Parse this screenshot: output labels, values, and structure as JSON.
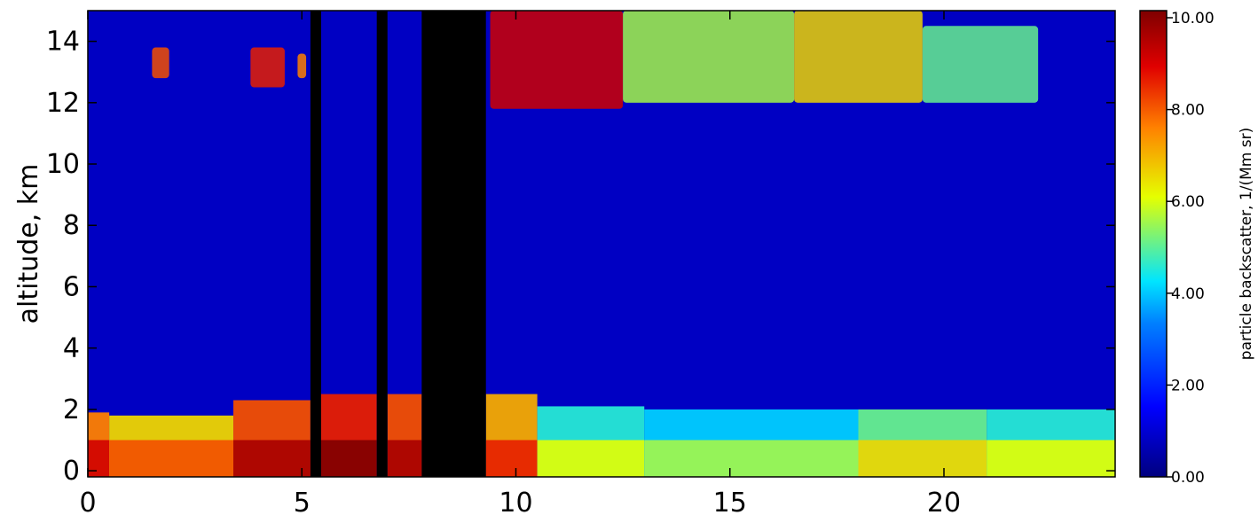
{
  "chart_data": {
    "type": "heatmap",
    "title": "",
    "xlabel": "",
    "ylabel": "altitude, km",
    "xlim": [
      0,
      24
    ],
    "ylim": [
      -0.2,
      15
    ],
    "x_ticks": [
      0,
      5,
      10,
      15,
      20
    ],
    "x_tick_labels": [
      "0",
      "5",
      "10",
      "15",
      "20"
    ],
    "y_ticks": [
      0,
      2,
      4,
      6,
      8,
      10,
      12,
      14
    ],
    "y_tick_labels": [
      "0",
      "2",
      "4",
      "6",
      "8",
      "10",
      "12",
      "14"
    ],
    "colorbar": {
      "label": "particle backscatter, 1/(Mm sr)",
      "range": [
        0,
        10
      ],
      "ticks": [
        0,
        2,
        4,
        6,
        8,
        10
      ],
      "tick_labels": [
        "0.00",
        "2.00",
        "4.00",
        "6.00",
        "8.00",
        "10.00"
      ],
      "colormap": "rainbow (dark blue → cyan → yellow → red), white = saturated, black = no data"
    },
    "background_value": 0.8,
    "no_data_columns": [
      {
        "x0": 5.2,
        "x1": 5.45
      },
      {
        "x0": 6.75,
        "x1": 7.0
      },
      {
        "x0": 7.8,
        "x1": 9.3
      }
    ],
    "boundary_layer": [
      {
        "x0": 0.0,
        "x1": 0.5,
        "top": 1.9,
        "value": 7.5
      },
      {
        "x0": 0.5,
        "x1": 3.4,
        "top": 1.8,
        "value": 6.5
      },
      {
        "x0": 3.4,
        "x1": 5.2,
        "top": 2.3,
        "value": 8.0
      },
      {
        "x0": 5.45,
        "x1": 6.75,
        "top": 2.5,
        "value": 8.5
      },
      {
        "x0": 7.0,
        "x1": 7.8,
        "top": 2.5,
        "value": 8.0
      },
      {
        "x0": 9.3,
        "x1": 10.5,
        "top": 2.5,
        "value": 7.0
      },
      {
        "x0": 10.5,
        "x1": 13.0,
        "top": 2.1,
        "value": 4.5
      },
      {
        "x0": 13.0,
        "x1": 18.0,
        "top": 2.0,
        "value": 4.0
      },
      {
        "x0": 18.0,
        "x1": 21.0,
        "top": 2.0,
        "value": 5.0
      },
      {
        "x0": 21.0,
        "x1": 24.0,
        "top": 2.0,
        "value": 4.5
      }
    ],
    "cirrus_layers": [
      {
        "x0": 9.4,
        "x1": 12.5,
        "bottom": 11.8,
        "top": 15.0,
        "value": 9.0
      },
      {
        "x0": 12.5,
        "x1": 16.5,
        "bottom": 12.0,
        "top": 15.0,
        "value": 5.5
      },
      {
        "x0": 16.5,
        "x1": 19.5,
        "bottom": 12.0,
        "top": 15.0,
        "value": 6.5
      },
      {
        "x0": 19.5,
        "x1": 22.2,
        "bottom": 12.0,
        "top": 14.5,
        "value": 5.0
      },
      {
        "x0": 1.5,
        "x1": 1.9,
        "bottom": 12.8,
        "top": 13.8,
        "value": 8.0
      },
      {
        "x0": 3.8,
        "x1": 4.6,
        "bottom": 12.5,
        "top": 13.8,
        "value": 8.5
      },
      {
        "x0": 4.9,
        "x1": 5.1,
        "bottom": 12.8,
        "top": 13.6,
        "value": 7.5
      }
    ]
  }
}
